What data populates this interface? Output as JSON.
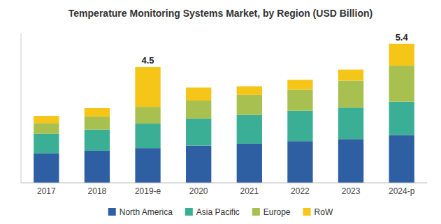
{
  "chart_data": {
    "type": "bar",
    "stacked": true,
    "title": "Temperature Monitoring Systems Market, by Region (USD Billion)",
    "categories": [
      "2017",
      "2018",
      "2019-e",
      "2020",
      "2021",
      "2022",
      "2023",
      "2024-p"
    ],
    "series": [
      {
        "name": "North America",
        "color": "#2e5fa3",
        "values": [
          1.15,
          1.25,
          1.35,
          1.45,
          1.52,
          1.62,
          1.7,
          1.85
        ]
      },
      {
        "name": "Asia Pacific",
        "color": "#3aaf96",
        "values": [
          0.75,
          0.82,
          0.95,
          1.05,
          1.12,
          1.18,
          1.22,
          1.3
        ]
      },
      {
        "name": "Europe",
        "color": "#a8c04f",
        "values": [
          0.42,
          0.5,
          0.65,
          0.7,
          0.78,
          0.82,
          1.05,
          1.4
        ]
      },
      {
        "name": "RoW",
        "color": "#f5c518",
        "values": [
          0.28,
          0.33,
          1.55,
          0.5,
          0.33,
          0.38,
          0.43,
          0.85
        ]
      }
    ],
    "annotations": [
      {
        "text": "4.5",
        "category": "2019-e",
        "value": 4.5
      },
      {
        "text": "5.4",
        "category": "2024-p",
        "value": 5.4
      }
    ],
    "ylim": [
      0,
      5.8
    ],
    "tick_labels": "x",
    "grid": false,
    "legend": "bottom"
  }
}
